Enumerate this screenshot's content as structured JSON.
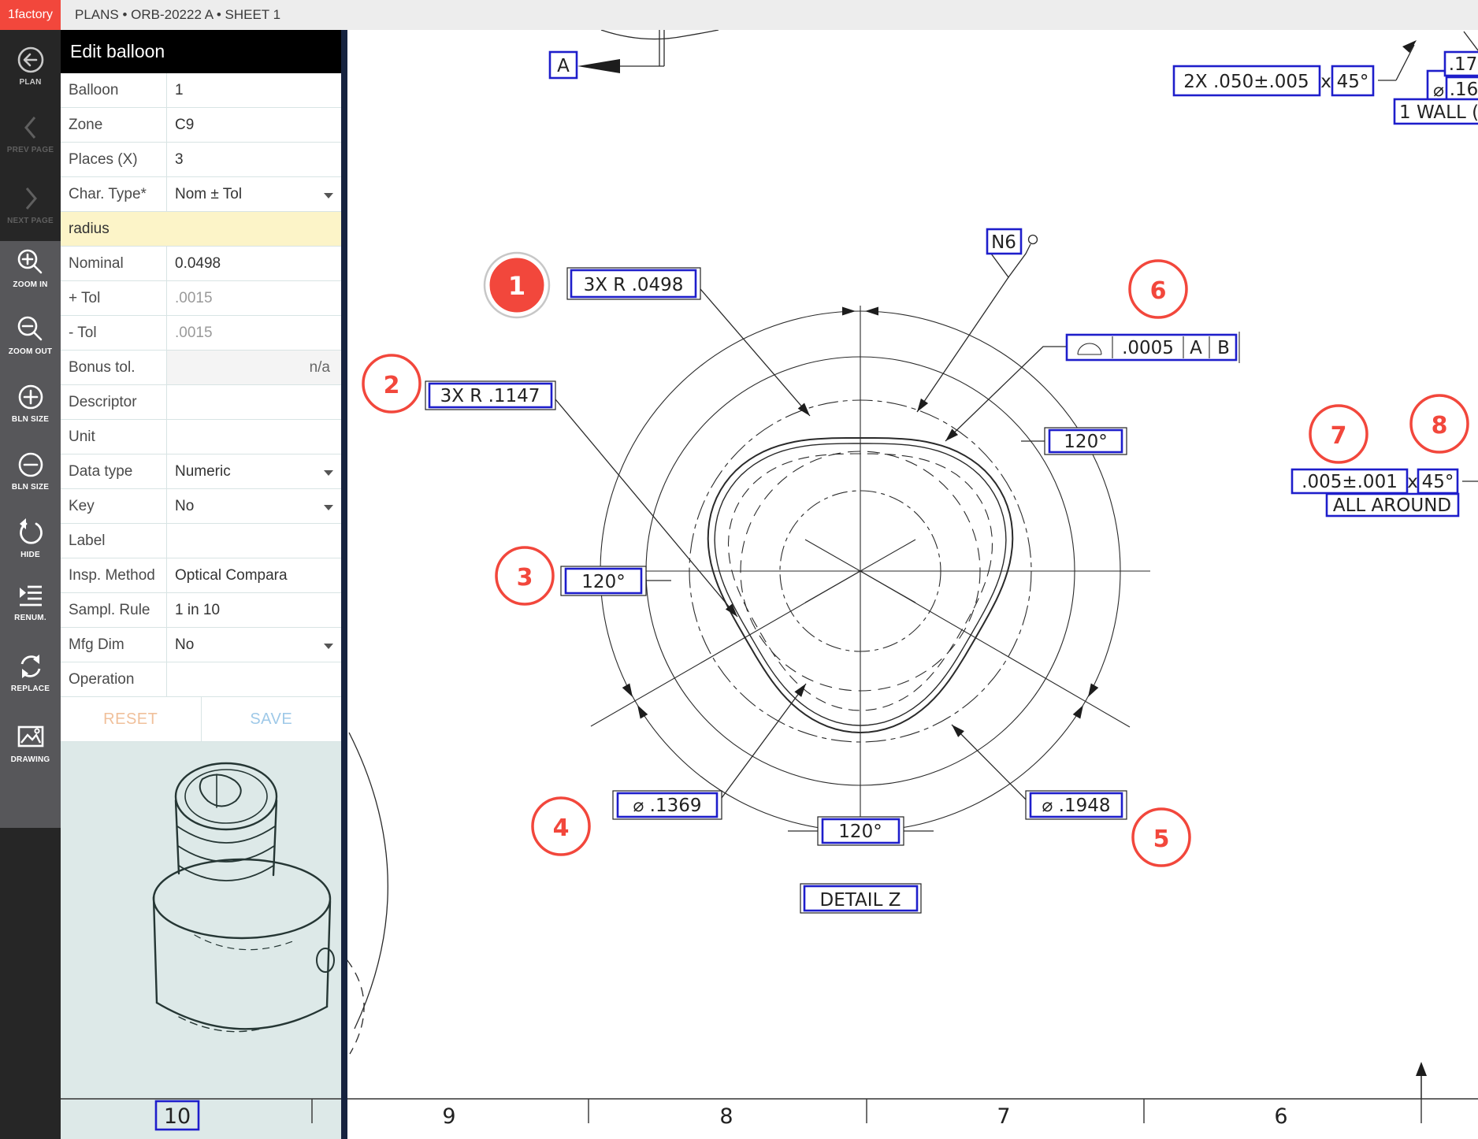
{
  "topbar": {
    "brand": "1factory",
    "breadcrumb": "PLANS • ORB-20222 A • SHEET 1"
  },
  "sidebar": {
    "plan": "PLAN",
    "prev": "PREV PAGE",
    "next": "NEXT PAGE",
    "zoom_in": "ZOOM IN",
    "zoom_out": "ZOOM OUT",
    "bln_plus": "BLN SIZE",
    "bln_minus": "BLN SIZE",
    "hide": "HIDE",
    "renum": "RENUM.",
    "replace": "REPLACE",
    "drawing": "DRAWING"
  },
  "panel": {
    "title": "Edit balloon",
    "rows": [
      {
        "label": "Balloon",
        "value": "1"
      },
      {
        "label": "Zone",
        "value": "C9"
      },
      {
        "label": "Places (X)",
        "value": "3"
      },
      {
        "label": "Char. Type*",
        "value": "Nom ± Tol"
      },
      {
        "label": "radius",
        "value": ""
      },
      {
        "label": "Nominal",
        "value": "0.0498"
      },
      {
        "label": "+ Tol",
        "value": ".0015"
      },
      {
        "label": "- Tol",
        "value": ".0015"
      },
      {
        "label": "Bonus tol.",
        "value": "n/a"
      },
      {
        "label": "Descriptor",
        "value": ""
      },
      {
        "label": "Unit",
        "value": ""
      },
      {
        "label": "Data type",
        "value": "Numeric"
      },
      {
        "label": "Key",
        "value": "No"
      },
      {
        "label": "Label",
        "value": ""
      },
      {
        "label": "Insp. Method",
        "value": "Optical Compara"
      },
      {
        "label": "Sampl. Rule",
        "value": "1 in 10"
      },
      {
        "label": "Mfg Dim",
        "value": "No"
      },
      {
        "label": "Operation",
        "value": ""
      }
    ],
    "reset": "RESET",
    "save": "SAVE"
  },
  "drawing": {
    "datum_a": "A",
    "chamfer2x": "2X .050±.005",
    "chamfer2x_x": "x",
    "chamfer2x_angle": "45°",
    "dia_sym": "⌀",
    "dia_17": ".17",
    "dia_16": ".16",
    "wall": "1 WALL (",
    "n6": "N6",
    "profile_tol": ".0005",
    "profile_d1": "A",
    "profile_d2": "B",
    "r1": "3X R .0498",
    "r2": "3X R .1147",
    "ang_right": "120°",
    "ang_left": "120°",
    "ang_bottom": "120°",
    "dia_minor": "⌀ .1369",
    "dia_major": "⌀ .1948",
    "chamfer_all": ".005±.001",
    "chamfer_all_x": "x",
    "chamfer_all_angle": "45°",
    "all_around": "ALL AROUND",
    "detail": "DETAIL Z",
    "balloons": [
      "1",
      "2",
      "3",
      "4",
      "5",
      "6",
      "7",
      "8"
    ],
    "zones": [
      "10",
      "9",
      "8",
      "7",
      "6"
    ]
  }
}
